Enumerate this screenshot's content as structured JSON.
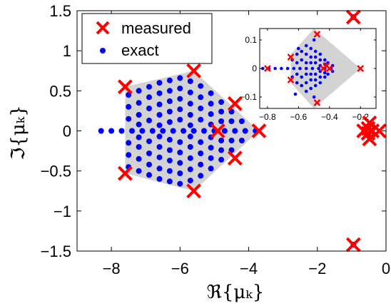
{
  "chart_data": {
    "type": "scatter",
    "xlabel": "ℜ{μₖ}",
    "ylabel": "ℑ{μₖ}",
    "xlim": [
      -9,
      0
    ],
    "ylim": [
      -1.5,
      1.5
    ],
    "xticks": [
      -8,
      -6,
      -4,
      -2,
      0
    ],
    "xtick_labels": [
      "−8",
      "−6",
      "−4",
      "−2",
      "0"
    ],
    "yticks": [
      1.5,
      1,
      0.5,
      0,
      -0.5,
      -1,
      -1.5
    ],
    "ytick_labels": [
      "1.5",
      "1",
      "0.5",
      "0",
      "−0.5",
      "−1",
      "−1.5"
    ],
    "grid": false,
    "legend": {
      "position": "top-left",
      "entries": [
        {
          "label": "measured",
          "marker": "x",
          "color": "#ff0000"
        },
        {
          "label": "exact",
          "marker": "dot",
          "color": "#0000ff"
        }
      ]
    },
    "hull": {
      "color": "#d3d3d3",
      "vertices": [
        [
          -3.7,
          0.0
        ],
        [
          -5.6,
          0.75
        ],
        [
          -7.6,
          0.55
        ],
        [
          -7.6,
          -0.53
        ],
        [
          -5.6,
          -0.75
        ]
      ]
    },
    "series": [
      {
        "name": "measured",
        "marker": "x",
        "color": "#ff0000",
        "points": [
          [
            -3.7,
            0.0
          ],
          [
            -5.6,
            0.75
          ],
          [
            -7.6,
            0.55
          ],
          [
            -7.6,
            -0.53
          ],
          [
            -5.6,
            -0.75
          ],
          [
            -4.4,
            0.34
          ],
          [
            -4.4,
            -0.34
          ],
          [
            -4.9,
            0.0
          ],
          [
            -0.95,
            1.42
          ],
          [
            -0.95,
            -1.42
          ],
          [
            -0.65,
            0.0
          ],
          [
            -0.2,
            0.0
          ],
          [
            -0.48,
            0.1
          ],
          [
            -0.48,
            -0.1
          ],
          [
            -0.52,
            0.03
          ],
          [
            -0.52,
            -0.03
          ],
          [
            -0.4,
            0.0
          ]
        ]
      },
      {
        "name": "exact",
        "marker": "dot",
        "color": "#0000ff",
        "points": [
          [
            -8.3,
            0.0
          ],
          [
            -8.0,
            0.0
          ],
          [
            -7.7,
            0.0
          ],
          [
            -7.4,
            0.0
          ],
          [
            -7.1,
            0.0
          ],
          [
            -6.8,
            0.0
          ],
          [
            -6.5,
            0.0
          ],
          [
            -6.2,
            0.0
          ],
          [
            -5.9,
            0.0
          ],
          [
            -5.6,
            0.0
          ],
          [
            -5.3,
            0.0
          ],
          [
            -5.0,
            0.0
          ],
          [
            -4.7,
            0.0
          ],
          [
            -4.4,
            0.0
          ],
          [
            -4.1,
            0.0
          ],
          [
            -3.8,
            0.0
          ],
          [
            -7.5,
            0.45
          ],
          [
            -7.5,
            -0.45
          ],
          [
            -7.5,
            0.3
          ],
          [
            -7.5,
            -0.3
          ],
          [
            -7.5,
            0.15
          ],
          [
            -7.5,
            -0.15
          ],
          [
            -7.2,
            0.5
          ],
          [
            -7.2,
            -0.5
          ],
          [
            -7.2,
            0.35
          ],
          [
            -7.2,
            -0.35
          ],
          [
            -7.2,
            0.2
          ],
          [
            -7.2,
            -0.2
          ],
          [
            -7.2,
            0.08
          ],
          [
            -7.2,
            -0.08
          ],
          [
            -6.9,
            0.55
          ],
          [
            -6.9,
            -0.55
          ],
          [
            -6.9,
            0.42
          ],
          [
            -6.9,
            -0.42
          ],
          [
            -6.9,
            0.28
          ],
          [
            -6.9,
            -0.28
          ],
          [
            -6.9,
            0.13
          ],
          [
            -6.9,
            -0.13
          ],
          [
            -6.6,
            0.6
          ],
          [
            -6.6,
            -0.6
          ],
          [
            -6.6,
            0.47
          ],
          [
            -6.6,
            -0.47
          ],
          [
            -6.6,
            0.33
          ],
          [
            -6.6,
            -0.33
          ],
          [
            -6.6,
            0.2
          ],
          [
            -6.6,
            -0.2
          ],
          [
            -6.6,
            0.07
          ],
          [
            -6.6,
            -0.07
          ],
          [
            -6.3,
            0.63
          ],
          [
            -6.3,
            -0.63
          ],
          [
            -6.3,
            0.5
          ],
          [
            -6.3,
            -0.5
          ],
          [
            -6.3,
            0.37
          ],
          [
            -6.3,
            -0.37
          ],
          [
            -6.3,
            0.24
          ],
          [
            -6.3,
            -0.24
          ],
          [
            -6.3,
            0.11
          ],
          [
            -6.3,
            -0.11
          ],
          [
            -6.0,
            0.66
          ],
          [
            -6.0,
            -0.66
          ],
          [
            -6.0,
            0.53
          ],
          [
            -6.0,
            -0.53
          ],
          [
            -6.0,
            0.4
          ],
          [
            -6.0,
            -0.4
          ],
          [
            -6.0,
            0.27
          ],
          [
            -6.0,
            -0.27
          ],
          [
            -6.0,
            0.14
          ],
          [
            -6.0,
            -0.14
          ],
          [
            -5.7,
            0.62
          ],
          [
            -5.7,
            -0.62
          ],
          [
            -5.7,
            0.48
          ],
          [
            -5.7,
            -0.48
          ],
          [
            -5.7,
            0.34
          ],
          [
            -5.7,
            -0.34
          ],
          [
            -5.7,
            0.2
          ],
          [
            -5.7,
            -0.2
          ],
          [
            -5.7,
            0.07
          ],
          [
            -5.7,
            -0.07
          ],
          [
            -5.4,
            0.56
          ],
          [
            -5.4,
            -0.56
          ],
          [
            -5.4,
            0.42
          ],
          [
            -5.4,
            -0.42
          ],
          [
            -5.4,
            0.28
          ],
          [
            -5.4,
            -0.28
          ],
          [
            -5.4,
            0.14
          ],
          [
            -5.4,
            -0.14
          ],
          [
            -5.1,
            0.47
          ],
          [
            -5.1,
            -0.47
          ],
          [
            -5.1,
            0.34
          ],
          [
            -5.1,
            -0.34
          ],
          [
            -5.1,
            0.21
          ],
          [
            -5.1,
            -0.21
          ],
          [
            -5.1,
            0.08
          ],
          [
            -5.1,
            -0.08
          ],
          [
            -4.8,
            0.36
          ],
          [
            -4.8,
            -0.36
          ],
          [
            -4.8,
            0.24
          ],
          [
            -4.8,
            -0.24
          ],
          [
            -4.8,
            0.12
          ],
          [
            -4.8,
            -0.12
          ],
          [
            -4.5,
            0.24
          ],
          [
            -4.5,
            -0.24
          ],
          [
            -4.5,
            0.12
          ],
          [
            -4.5,
            -0.12
          ],
          [
            -4.2,
            0.12
          ],
          [
            -4.2,
            -0.12
          ],
          [
            -0.95,
            1.42
          ],
          [
            -0.95,
            -1.42
          ]
        ]
      }
    ],
    "inset": {
      "type": "scatter",
      "xlim": [
        -0.85,
        -0.1
      ],
      "ylim": [
        -0.14,
        0.14
      ],
      "xticks": [
        -0.8,
        -0.6,
        -0.4,
        -0.2
      ],
      "xtick_labels": [
        "−0.8",
        "−0.6",
        "−0.4",
        "−0.2"
      ],
      "yticks": [
        0.1,
        0,
        -0.1
      ],
      "ytick_labels": [
        "0.1",
        "0",
        "−0.1"
      ],
      "hull": {
        "color": "#d3d3d3",
        "vertices": [
          [
            -0.2,
            0.0
          ],
          [
            -0.5,
            0.14
          ],
          [
            -0.65,
            0.05
          ],
          [
            -0.65,
            -0.05
          ],
          [
            -0.5,
            -0.14
          ]
        ]
      },
      "series": [
        {
          "name": "measured",
          "marker": "x",
          "color": "#ff0000",
          "points": [
            [
              -0.8,
              0.0
            ],
            [
              -0.65,
              0.04
            ],
            [
              -0.65,
              -0.04
            ],
            [
              -0.48,
              0.12
            ],
            [
              -0.48,
              -0.12
            ],
            [
              -0.2,
              0.0
            ],
            [
              -0.44,
              0.0
            ],
            [
              -0.4,
              0.0
            ],
            [
              -0.42,
              0.01
            ]
          ]
        },
        {
          "name": "exact",
          "marker": "dot",
          "color": "#0000ff",
          "points": [
            [
              -0.83,
              0.0
            ],
            [
              -0.79,
              0.0
            ],
            [
              -0.75,
              0.0
            ],
            [
              -0.71,
              0.0
            ],
            [
              -0.67,
              0.0
            ],
            [
              -0.63,
              0.0
            ],
            [
              -0.59,
              0.0
            ],
            [
              -0.55,
              0.0
            ],
            [
              -0.51,
              0.0
            ],
            [
              -0.47,
              0.0
            ],
            [
              -0.43,
              0.0
            ],
            [
              -0.39,
              0.0
            ],
            [
              -0.64,
              0.03
            ],
            [
              -0.64,
              -0.03
            ],
            [
              -0.61,
              0.05
            ],
            [
              -0.61,
              -0.05
            ],
            [
              -0.61,
              0.02
            ],
            [
              -0.61,
              -0.02
            ],
            [
              -0.58,
              0.06
            ],
            [
              -0.58,
              -0.06
            ],
            [
              -0.58,
              0.03
            ],
            [
              -0.58,
              -0.03
            ],
            [
              -0.55,
              0.08
            ],
            [
              -0.55,
              -0.08
            ],
            [
              -0.55,
              0.05
            ],
            [
              -0.55,
              -0.05
            ],
            [
              -0.55,
              0.02
            ],
            [
              -0.55,
              -0.02
            ],
            [
              -0.52,
              0.07
            ],
            [
              -0.52,
              -0.07
            ],
            [
              -0.52,
              0.04
            ],
            [
              -0.52,
              -0.04
            ],
            [
              -0.52,
              0.02
            ],
            [
              -0.52,
              -0.02
            ],
            [
              -0.49,
              0.06
            ],
            [
              -0.49,
              -0.06
            ],
            [
              -0.49,
              0.04
            ],
            [
              -0.49,
              -0.04
            ],
            [
              -0.49,
              0.02
            ],
            [
              -0.49,
              -0.02
            ],
            [
              -0.46,
              0.05
            ],
            [
              -0.46,
              -0.05
            ],
            [
              -0.46,
              0.03
            ],
            [
              -0.46,
              -0.03
            ],
            [
              -0.46,
              0.01
            ],
            [
              -0.46,
              -0.01
            ],
            [
              -0.43,
              0.03
            ],
            [
              -0.43,
              -0.03
            ],
            [
              -0.43,
              0.015
            ],
            [
              -0.43,
              -0.015
            ],
            [
              -0.41,
              0.02
            ],
            [
              -0.41,
              -0.02
            ],
            [
              -0.38,
              0.01
            ],
            [
              -0.38,
              -0.01
            ],
            [
              -0.62,
              -0.09
            ],
            [
              -0.6,
              0.07
            ],
            [
              -0.5,
              0.1
            ],
            [
              -0.5,
              -0.1
            ]
          ]
        }
      ]
    }
  }
}
